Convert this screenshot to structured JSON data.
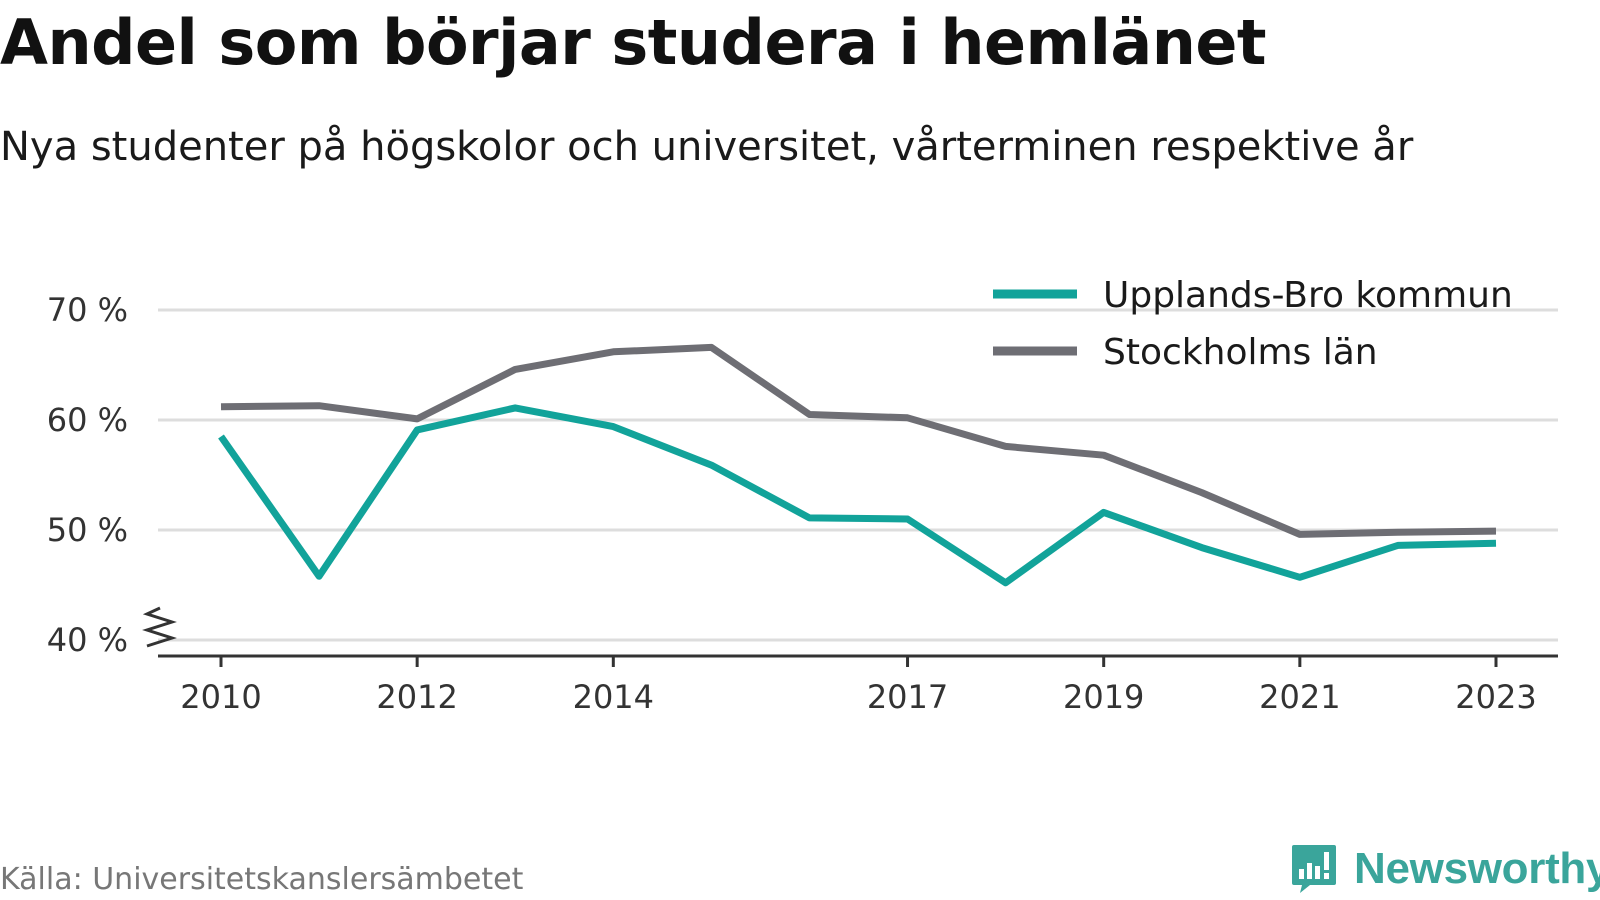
{
  "header": {
    "title": "Andel som börjar studera i hemlänet",
    "subtitle": "Nya studenter på högskolor och universitet, vårterminen respektive år"
  },
  "footer": {
    "source": "Källa: Universitetskanslersämbetet",
    "brand": "Newsworthy",
    "brand_icon": "bar-chart-exclamation-icon"
  },
  "colors": {
    "upplands_bro": "#12a39a",
    "stockholm": "#6e6e74",
    "grid": "#dddddd",
    "axis": "#333333",
    "brand": "#3aa59b"
  },
  "chart_data": {
    "type": "line",
    "x": [
      2010,
      2011,
      2012,
      2013,
      2014,
      2015,
      2016,
      2017,
      2018,
      2019,
      2020,
      2021,
      2022,
      2023
    ],
    "x_tick_values": [
      2010,
      2012,
      2014,
      2017,
      2019,
      2021,
      2023
    ],
    "x_tick_labels": [
      "2010",
      "2012",
      "2014",
      "2017",
      "2019",
      "2021",
      "2023"
    ],
    "y_tick_values": [
      40,
      50,
      60,
      70
    ],
    "y_tick_labels": [
      "40 %",
      "50 %",
      "60 %",
      "70 %"
    ],
    "ylim": [
      40,
      70
    ],
    "y_axis_break": true,
    "grid": true,
    "legend_position": "top-right",
    "series": [
      {
        "name": "Upplands-Bro kommun",
        "color": "#12a39a",
        "values": [
          58.5,
          45.8,
          59.1,
          61.1,
          59.4,
          55.9,
          51.1,
          51.0,
          45.2,
          51.6,
          48.4,
          45.7,
          48.6,
          48.8
        ]
      },
      {
        "name": "Stockholms län",
        "color": "#6e6e74",
        "values": [
          61.2,
          61.3,
          60.1,
          64.6,
          66.2,
          66.6,
          60.5,
          60.2,
          57.6,
          56.8,
          53.4,
          49.6,
          49.8,
          49.9
        ]
      }
    ]
  }
}
